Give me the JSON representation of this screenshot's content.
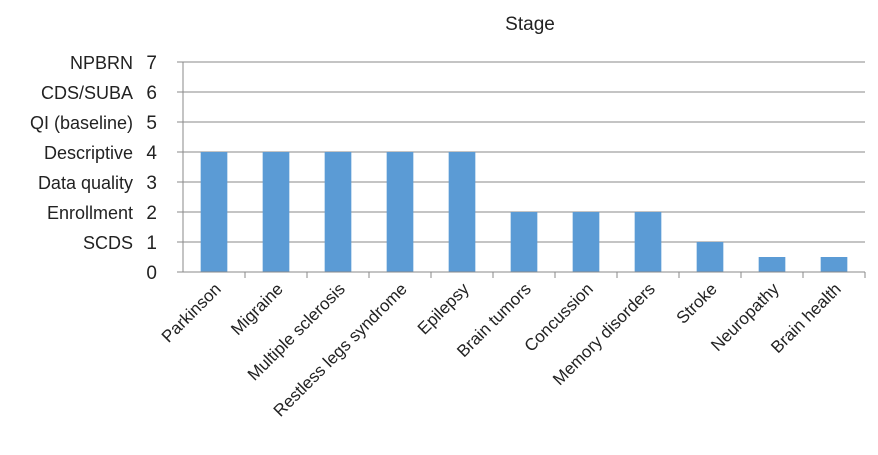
{
  "chart_data": {
    "type": "bar",
    "title": "Stage",
    "xlabel": "",
    "ylabel": "",
    "ylim": [
      0,
      7
    ],
    "yticks": [
      0,
      1,
      2,
      3,
      4,
      5,
      6,
      7
    ],
    "ytick_names": [
      "",
      "SCDS",
      "Enrollment",
      "Data quality",
      "Descriptive",
      "QI (baseline)",
      "CDS/SUBA",
      "NPBRN"
    ],
    "grid": true,
    "legend": "none",
    "bar_color": "#5b9bd5",
    "categories": [
      "Parkinson",
      "Migraine",
      "Multiple sclerosis",
      "Restless legs syndrome",
      "Epilepsy",
      "Brain tumors",
      "Concussion",
      "Memory disorders",
      "Stroke",
      "Neuropathy",
      "Brain health"
    ],
    "values": [
      4,
      4,
      4,
      4,
      4,
      2,
      2,
      2,
      1,
      0.5,
      0.5
    ]
  }
}
